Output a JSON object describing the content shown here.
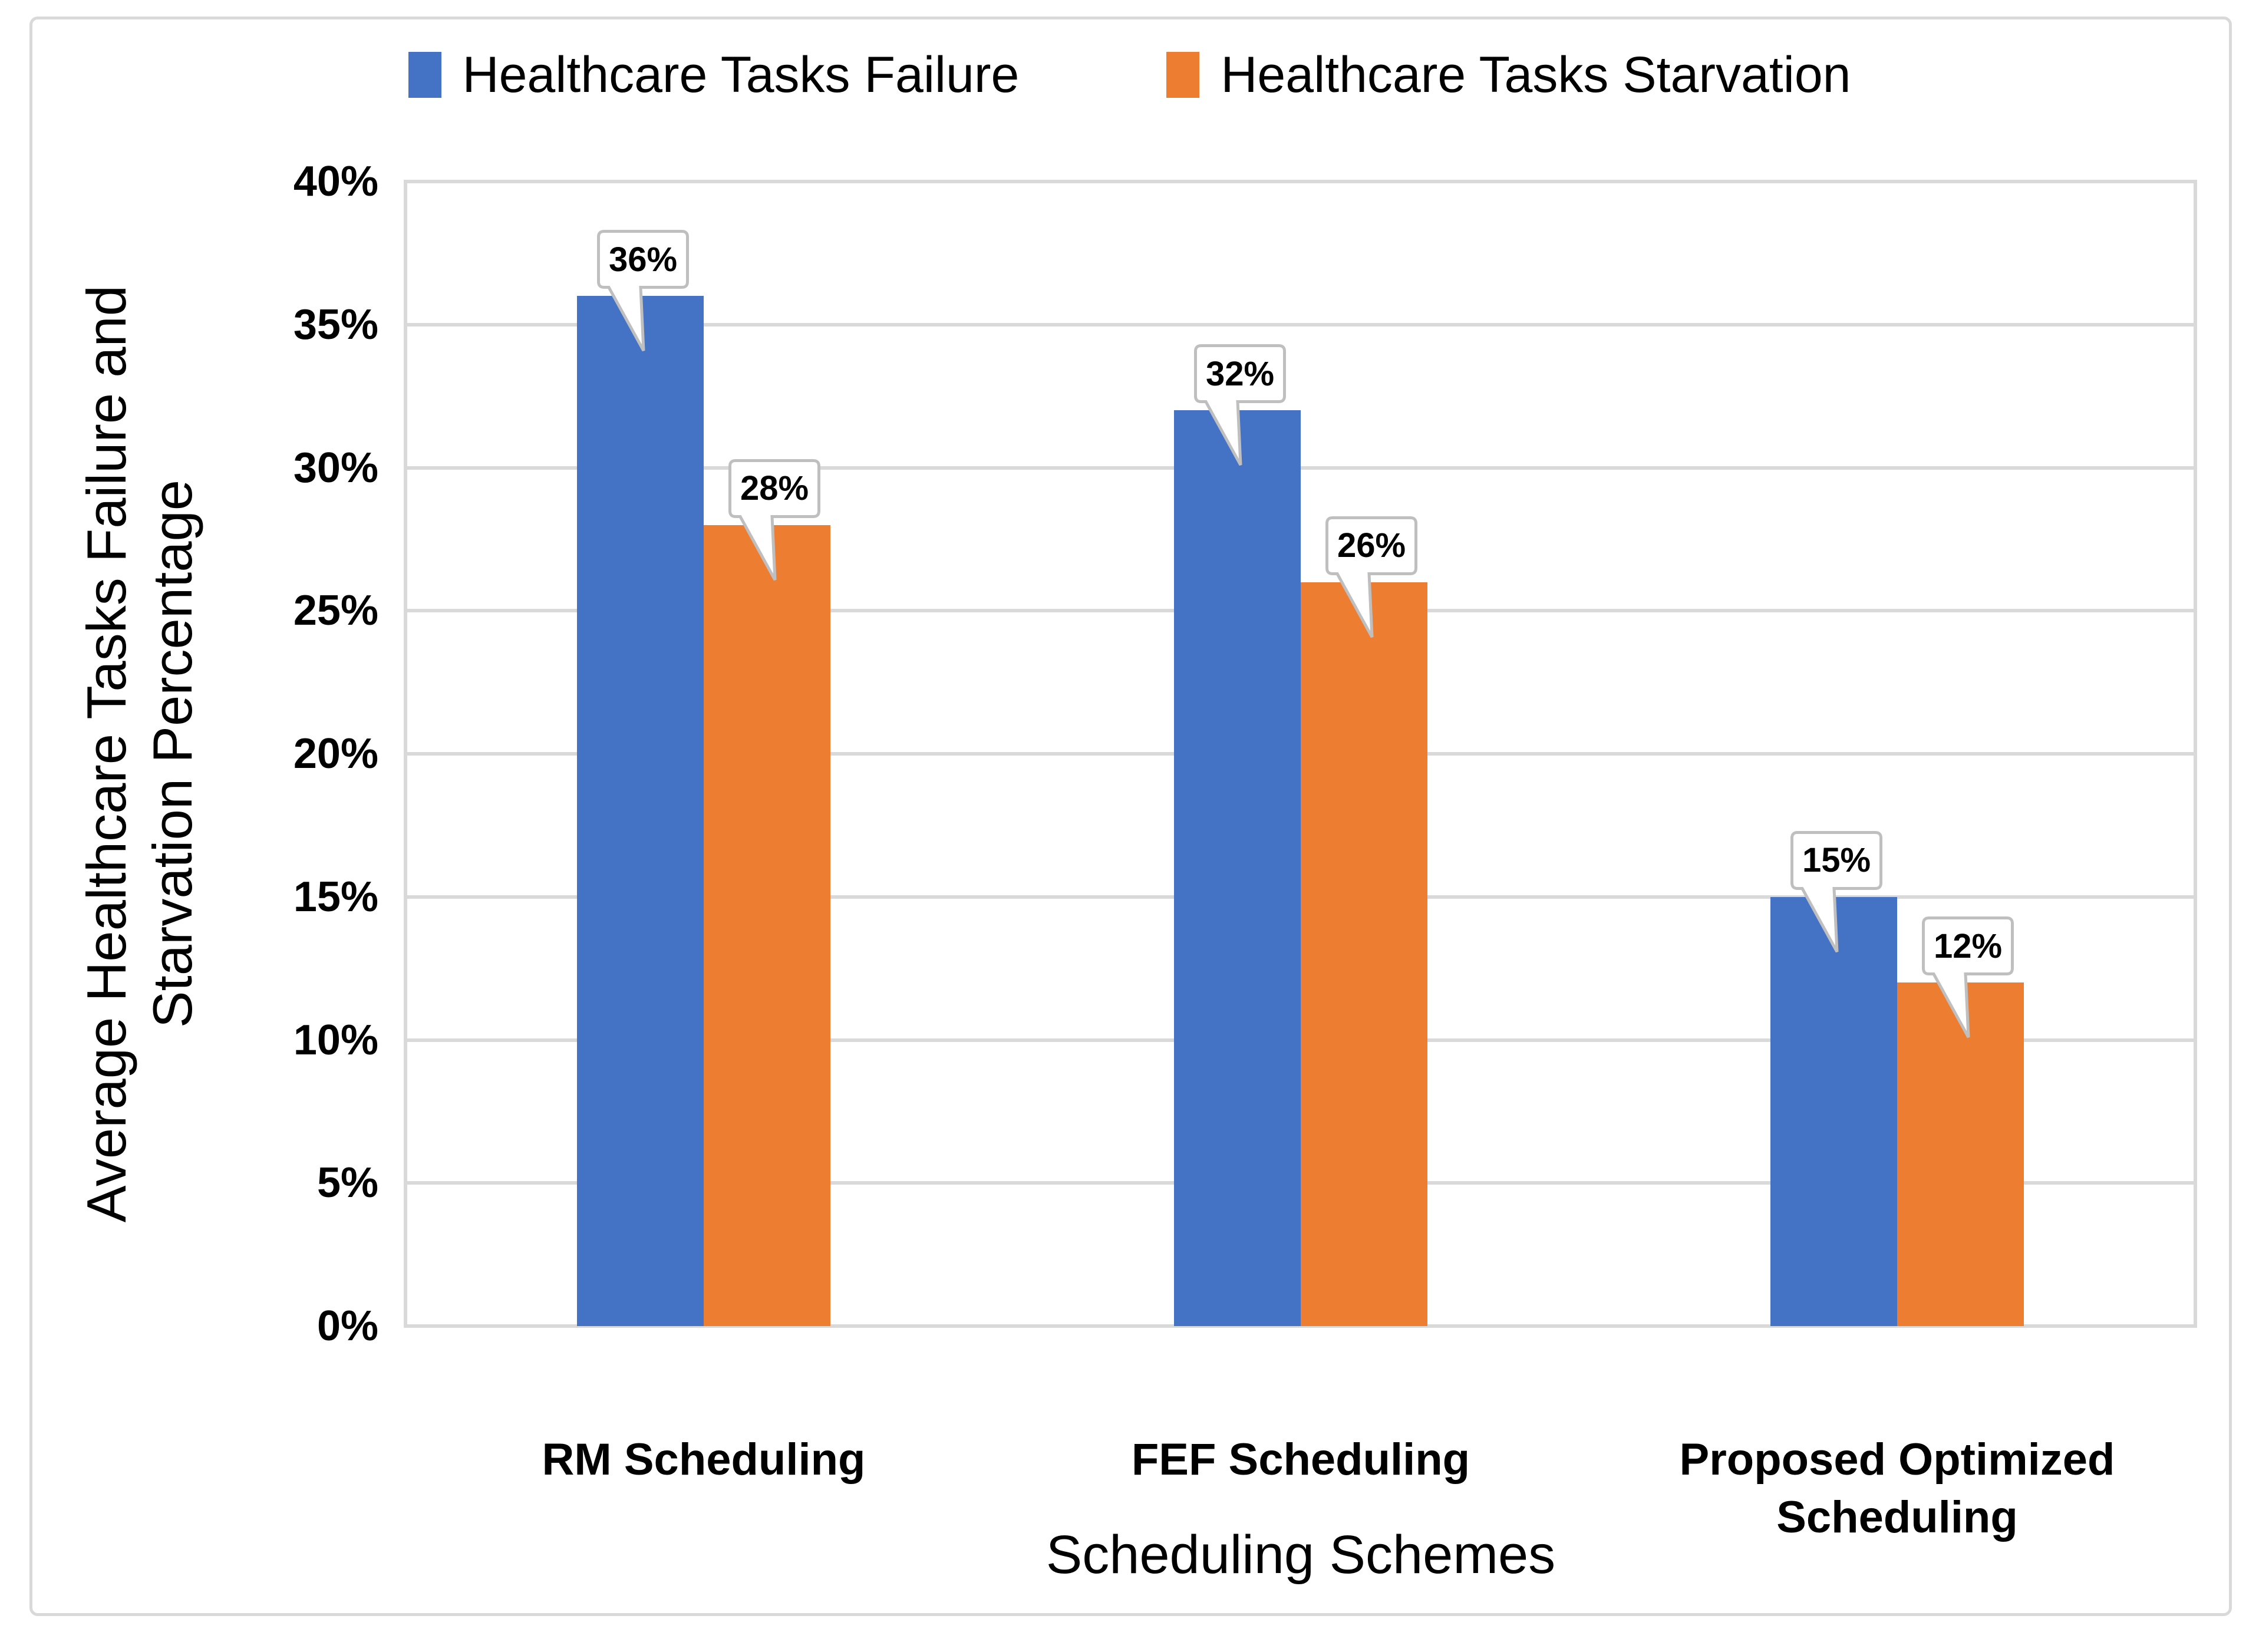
{
  "chart_data": {
    "type": "bar",
    "title": "",
    "categories": [
      "RM Scheduling",
      "FEF Scheduling",
      "Proposed Optimized Scheduling"
    ],
    "series": [
      {
        "name": "Healthcare Tasks Failure",
        "color": "#4472C4",
        "values": [
          36,
          32,
          15
        ],
        "labels": [
          "36%",
          "32%",
          "15%"
        ]
      },
      {
        "name": "Healthcare Tasks Starvation",
        "color": "#ED7D31",
        "values": [
          28,
          26,
          12
        ],
        "labels": [
          "28%",
          "26%",
          "12%"
        ]
      }
    ],
    "xlabel": "Scheduling Schemes",
    "ylabel": "Average Healthcare Tasks Failure and Starvation Percentage",
    "ylabel_lines": [
      "Average Healthcare Tasks Failure and",
      "Starvation Percentage"
    ],
    "y_ticks": [
      "40%",
      "35%",
      "30%",
      "25%",
      "20%",
      "15%",
      "10%",
      "5%",
      "0%"
    ],
    "ylim": [
      0,
      40
    ],
    "grid": true,
    "legend_position": "top",
    "data_label_style": "callout"
  },
  "colors": {
    "series_failure": "#4472C4",
    "series_starvation": "#ED7D31",
    "gridline": "#D9D9D9",
    "frame_border": "#D9D9D9",
    "callout_border": "#BFBFBF",
    "callout_fill": "#FFFFFF",
    "text": "#000000"
  }
}
